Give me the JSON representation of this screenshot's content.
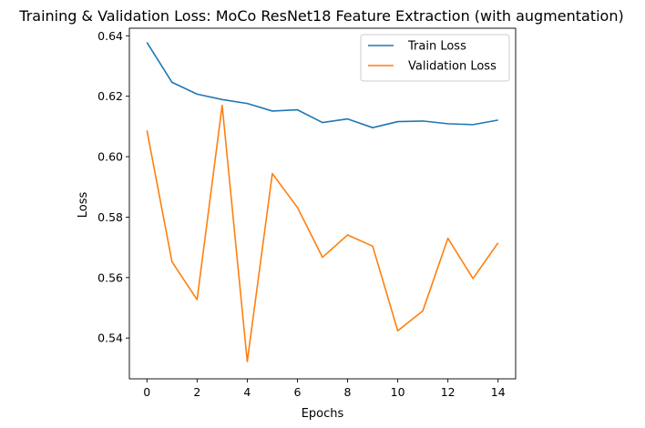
{
  "chart_data": {
    "type": "line",
    "title": "Training & Validation Loss: MoCo ResNet18 Feature Extraction (with augmentation)",
    "xlabel": "Epochs",
    "ylabel": "Loss",
    "x": [
      0,
      1,
      2,
      3,
      4,
      5,
      6,
      7,
      8,
      9,
      10,
      11,
      12,
      13,
      14
    ],
    "xlim": [
      -0.7,
      14.7
    ],
    "ylim": [
      0.5265,
      0.6425
    ],
    "xticks": [
      0,
      2,
      4,
      6,
      8,
      10,
      12,
      14
    ],
    "yticks": [
      0.54,
      0.56,
      0.58,
      0.6,
      0.62,
      0.64
    ],
    "xtick_labels": [
      "0",
      "2",
      "4",
      "6",
      "8",
      "10",
      "12",
      "14"
    ],
    "ytick_labels": [
      "0.54",
      "0.56",
      "0.58",
      "0.60",
      "0.62",
      "0.64"
    ],
    "grid": false,
    "legend": "top-right",
    "series": [
      {
        "name": "Train Loss",
        "color": "#1f77b4",
        "values": [
          0.6378,
          0.6246,
          0.6207,
          0.6189,
          0.6176,
          0.6151,
          0.6155,
          0.6113,
          0.6125,
          0.6096,
          0.6116,
          0.6118,
          0.6109,
          0.6106,
          0.6121
        ]
      },
      {
        "name": "Validation Loss",
        "color": "#ff7f0e",
        "values": [
          0.6087,
          0.5652,
          0.5527,
          0.617,
          0.5322,
          0.5944,
          0.5832,
          0.5667,
          0.5741,
          0.5704,
          0.5424,
          0.549,
          0.573,
          0.5597,
          0.5715
        ]
      }
    ]
  }
}
